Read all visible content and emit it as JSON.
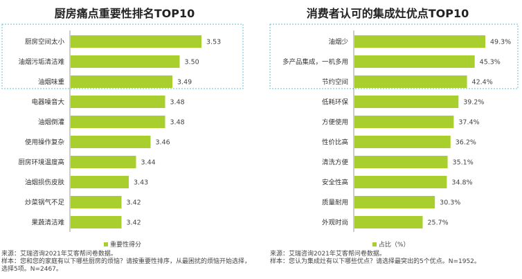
{
  "chart_data": [
    {
      "type": "bar",
      "orientation": "horizontal",
      "title": "厨房痛点重要性排名TOP10",
      "categories": [
        "厨房空间太小",
        "油烟污垢清洁难",
        "油烟味重",
        "电器噪音大",
        "油烟倒灌",
        "使用操作复杂",
        "厨房环境温度高",
        "油烟损伤皮肤",
        "炒菜锅气不足",
        "果蔬清洁难"
      ],
      "series": [
        {
          "name": "重要性得分",
          "values": [
            3.53,
            3.5,
            3.49,
            3.48,
            3.48,
            3.46,
            3.44,
            3.43,
            3.42,
            3.42
          ]
        }
      ],
      "labels": [
        "3.53",
        "3.50",
        "3.49",
        "3.48",
        "3.48",
        "3.46",
        "3.44",
        "3.43",
        "3.42",
        "3.42"
      ],
      "xlim": [
        3.35,
        3.53
      ],
      "highlighted_top": 3,
      "legend": "bottom",
      "grid": false,
      "bar_color": "#a9cf2f",
      "highlight_color": "#5bc0de",
      "source": "来源：艾瑞咨询2021年艾客帮问卷数据。",
      "sample": "样本：您和您的家庭有以下哪些厨房的烦恼？请按重要性排序，从最困扰的烦恼开始选择，选择5项。N=2467。"
    },
    {
      "type": "bar",
      "orientation": "horizontal",
      "title": "消费者认可的集成灶优点TOP10",
      "categories": [
        "油烟少",
        "多产品集成，一机多用",
        "节约空间",
        "低耗环保",
        "方便使用",
        "性价比高",
        "清洗方便",
        "安全性高",
        "质量耐用",
        "外观时尚"
      ],
      "series": [
        {
          "name": "占比（%）",
          "values": [
            49.3,
            45.3,
            42.4,
            39.2,
            37.4,
            36.2,
            35.1,
            34.8,
            30.3,
            25.7
          ]
        }
      ],
      "labels": [
        "49.3%",
        "45.3%",
        "42.4%",
        "39.2%",
        "37.4%",
        "36.2%",
        "35.1%",
        "34.8%",
        "30.3%",
        "25.7%"
      ],
      "xlim": [
        0,
        49.3
      ],
      "highlighted_top": 3,
      "legend": "bottom",
      "grid": false,
      "bar_color": "#a9cf2f",
      "highlight_color": "#5bc0de",
      "source": "来源：艾瑞咨询2021年艾客帮问卷数据。",
      "sample": "样本：您认为集成灶有以下哪些优点？请选择最突出的5个优点。N=1952。"
    }
  ]
}
